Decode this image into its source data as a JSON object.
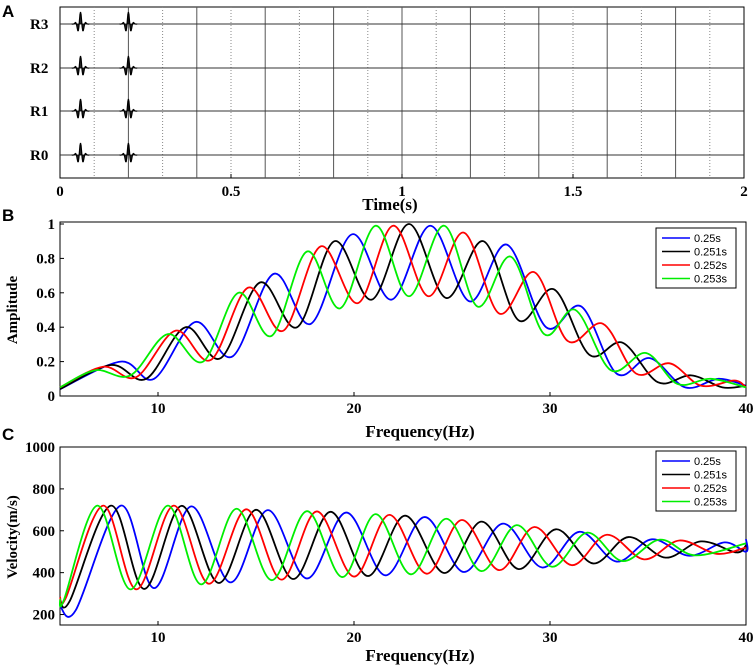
{
  "panels": {
    "a": {
      "letter": "A"
    },
    "b": {
      "letter": "B"
    },
    "c": {
      "letter": "C"
    }
  },
  "chart_data": [
    {
      "id": "A",
      "type": "line",
      "xlabel": "Time(s)",
      "ylabel": "",
      "xlim": [
        0,
        2
      ],
      "x_ticks": [
        0,
        0.5,
        1,
        1.5,
        2
      ],
      "x_tick_labels": [
        "0",
        "0.5",
        "1",
        "1.5",
        "2"
      ],
      "rows": [
        "R3",
        "R2",
        "R1",
        "R0"
      ],
      "wavelet_times": [
        0.06,
        0.2
      ],
      "solid_gridlines": [
        0.2,
        0.4,
        0.6,
        0.8,
        1.0,
        1.2,
        1.4,
        1.6,
        1.8
      ],
      "dotted_gridlines": [
        0.1,
        0.3,
        0.5,
        0.7,
        0.9,
        1.1,
        1.3,
        1.5,
        1.7,
        1.9
      ],
      "grid": true
    },
    {
      "id": "B",
      "type": "line",
      "xlabel": "Frequency(Hz)",
      "ylabel": "Amplitude",
      "xlim": [
        5,
        40
      ],
      "ylim": [
        0,
        1
      ],
      "x_ticks": [
        10,
        20,
        30,
        40
      ],
      "x_tick_labels": [
        "10",
        "20",
        "30",
        "40"
      ],
      "y_ticks": [
        0,
        0.2,
        0.4,
        0.6,
        0.8,
        1
      ],
      "y_tick_labels": [
        "0",
        "0.2",
        "0.4",
        "0.6",
        "0.8",
        "1"
      ],
      "legend_position": "top-right",
      "series": [
        {
          "name": "0.25s",
          "color": "#0000ff",
          "peaks": [
            [
              8.1,
              0.2
            ],
            [
              11.9,
              0.43
            ],
            [
              15.9,
              0.71
            ],
            [
              19.9,
              0.94
            ],
            [
              23.9,
              0.99
            ],
            [
              27.8,
              0.88
            ],
            [
              31.6,
              0.52
            ],
            [
              35.1,
              0.22
            ],
            [
              38.6,
              0.1
            ]
          ],
          "troughs": [
            [
              5,
              0.04
            ],
            [
              9.8,
              0.1
            ],
            [
              13.8,
              0.23
            ],
            [
              17.8,
              0.42
            ],
            [
              21.9,
              0.56
            ],
            [
              25.9,
              0.55
            ],
            [
              29.8,
              0.4
            ],
            [
              33.4,
              0.13
            ],
            [
              36.9,
              0.05
            ],
            [
              40,
              0.06
            ]
          ]
        },
        {
          "name": "0.251s",
          "color": "#000000",
          "peaks": [
            [
              7.6,
              0.18
            ],
            [
              11.4,
              0.4
            ],
            [
              15.2,
              0.66
            ],
            [
              19.0,
              0.9
            ],
            [
              22.8,
              1.0
            ],
            [
              26.6,
              0.9
            ],
            [
              30.2,
              0.62
            ],
            [
              33.7,
              0.31
            ],
            [
              37.2,
              0.12
            ]
          ],
          "troughs": [
            [
              5,
              0.04
            ],
            [
              9.4,
              0.1
            ],
            [
              13.2,
              0.22
            ],
            [
              17.1,
              0.4
            ],
            [
              20.9,
              0.56
            ],
            [
              24.7,
              0.57
            ],
            [
              28.4,
              0.44
            ],
            [
              32.0,
              0.24
            ],
            [
              35.5,
              0.08
            ],
            [
              38.8,
              0.05
            ],
            [
              40,
              0.06
            ]
          ]
        },
        {
          "name": "0.252s",
          "color": "#ff0000",
          "peaks": [
            [
              7.2,
              0.17
            ],
            [
              10.9,
              0.38
            ],
            [
              14.6,
              0.63
            ],
            [
              18.3,
              0.87
            ],
            [
              22.0,
              0.99
            ],
            [
              25.6,
              0.95
            ],
            [
              29.2,
              0.72
            ],
            [
              32.7,
              0.42
            ],
            [
              36.1,
              0.19
            ],
            [
              39.4,
              0.09
            ]
          ],
          "troughs": [
            [
              5,
              0.05
            ],
            [
              8.9,
              0.11
            ],
            [
              12.7,
              0.21
            ],
            [
              16.4,
              0.38
            ],
            [
              20.2,
              0.54
            ],
            [
              23.8,
              0.58
            ],
            [
              27.4,
              0.48
            ],
            [
              30.9,
              0.32
            ],
            [
              34.4,
              0.13
            ],
            [
              37.7,
              0.06
            ],
            [
              40,
              0.05
            ]
          ]
        },
        {
          "name": "0.253s",
          "color": "#00ee00",
          "peaks": [
            [
              6.8,
              0.15
            ],
            [
              10.5,
              0.36
            ],
            [
              14.1,
              0.6
            ],
            [
              17.6,
              0.84
            ],
            [
              21.1,
              0.99
            ],
            [
              24.6,
              0.99
            ],
            [
              28.0,
              0.81
            ],
            [
              31.3,
              0.5
            ],
            [
              34.9,
              0.25
            ],
            [
              38.2,
              0.1
            ]
          ],
          "troughs": [
            [
              5,
              0.05
            ],
            [
              8.6,
              0.12
            ],
            [
              12.3,
              0.2
            ],
            [
              15.8,
              0.35
            ],
            [
              19.3,
              0.51
            ],
            [
              22.8,
              0.58
            ],
            [
              26.3,
              0.52
            ],
            [
              29.7,
              0.36
            ],
            [
              33.1,
              0.15
            ],
            [
              36.5,
              0.07
            ],
            [
              40,
              0.05
            ]
          ]
        }
      ]
    },
    {
      "id": "C",
      "type": "line",
      "xlabel": "Frequency(Hz)",
      "ylabel": "Velocity(m/s)",
      "xlim": [
        5,
        40
      ],
      "ylim": [
        150,
        1000
      ],
      "x_ticks": [
        10,
        20,
        30,
        40
      ],
      "x_tick_labels": [
        "10",
        "20",
        "30",
        "40"
      ],
      "y_ticks": [
        200,
        400,
        600,
        800,
        1000
      ],
      "y_tick_labels": [
        "200",
        "400",
        "600",
        "800",
        "1000"
      ],
      "legend_position": "top-right",
      "series": [
        {
          "name": "0.25s",
          "color": "#0000ff",
          "start": [
            5,
            240
          ],
          "first_trough": [
            5.8,
            220
          ],
          "peak_freqs": [
            8.1,
            11.7,
            15.6,
            19.6,
            23.6,
            27.6,
            31.5,
            35.2,
            38.9
          ],
          "trough_freqs": [
            9.8,
            13.7,
            17.6,
            21.6,
            25.6,
            29.6,
            33.4,
            37.1,
            40
          ],
          "end": [
            40,
            560
          ]
        },
        {
          "name": "0.251s",
          "color": "#000000",
          "start": [
            5,
            270
          ],
          "first_trough": [
            5.5,
            265
          ],
          "peak_freqs": [
            7.6,
            11.2,
            15.0,
            18.8,
            22.6,
            26.5,
            30.3,
            34.0,
            37.7
          ],
          "trough_freqs": [
            9.3,
            13.1,
            16.9,
            20.7,
            24.6,
            28.4,
            32.2,
            35.9,
            39.5
          ],
          "end": [
            40,
            530
          ]
        },
        {
          "name": "0.252s",
          "color": "#ff0000",
          "start": [
            5,
            285
          ],
          "first_trough": [
            5.3,
            280
          ],
          "peak_freqs": [
            7.2,
            10.8,
            14.5,
            18.1,
            21.8,
            25.5,
            29.2,
            32.9,
            36.6
          ],
          "trough_freqs": [
            8.9,
            12.6,
            16.3,
            20.0,
            23.7,
            27.4,
            31.1,
            34.8,
            38.5
          ],
          "end": [
            40,
            520
          ]
        },
        {
          "name": "0.253s",
          "color": "#00ee00",
          "start": [
            5,
            275
          ],
          "first_trough": [
            5.2,
            270
          ],
          "peak_freqs": [
            6.9,
            10.5,
            14.0,
            17.6,
            21.1,
            24.7,
            28.3,
            31.9,
            35.6
          ],
          "trough_freqs": [
            8.6,
            12.2,
            15.8,
            19.4,
            22.9,
            26.5,
            30.1,
            33.7,
            37.4
          ],
          "end": [
            40,
            540
          ]
        }
      ],
      "peak_envelope": [
        [
          7,
          720
        ],
        [
          11,
          720
        ],
        [
          15,
          700
        ],
        [
          19,
          690
        ],
        [
          23,
          670
        ],
        [
          27,
          640
        ],
        [
          31,
          600
        ],
        [
          35,
          560
        ],
        [
          40,
          540
        ]
      ],
      "trough_envelope": [
        [
          9,
          320
        ],
        [
          13,
          350
        ],
        [
          17,
          370
        ],
        [
          21,
          385
        ],
        [
          25,
          400
        ],
        [
          29,
          420
        ],
        [
          33,
          450
        ],
        [
          37,
          480
        ],
        [
          40,
          500
        ]
      ]
    }
  ]
}
